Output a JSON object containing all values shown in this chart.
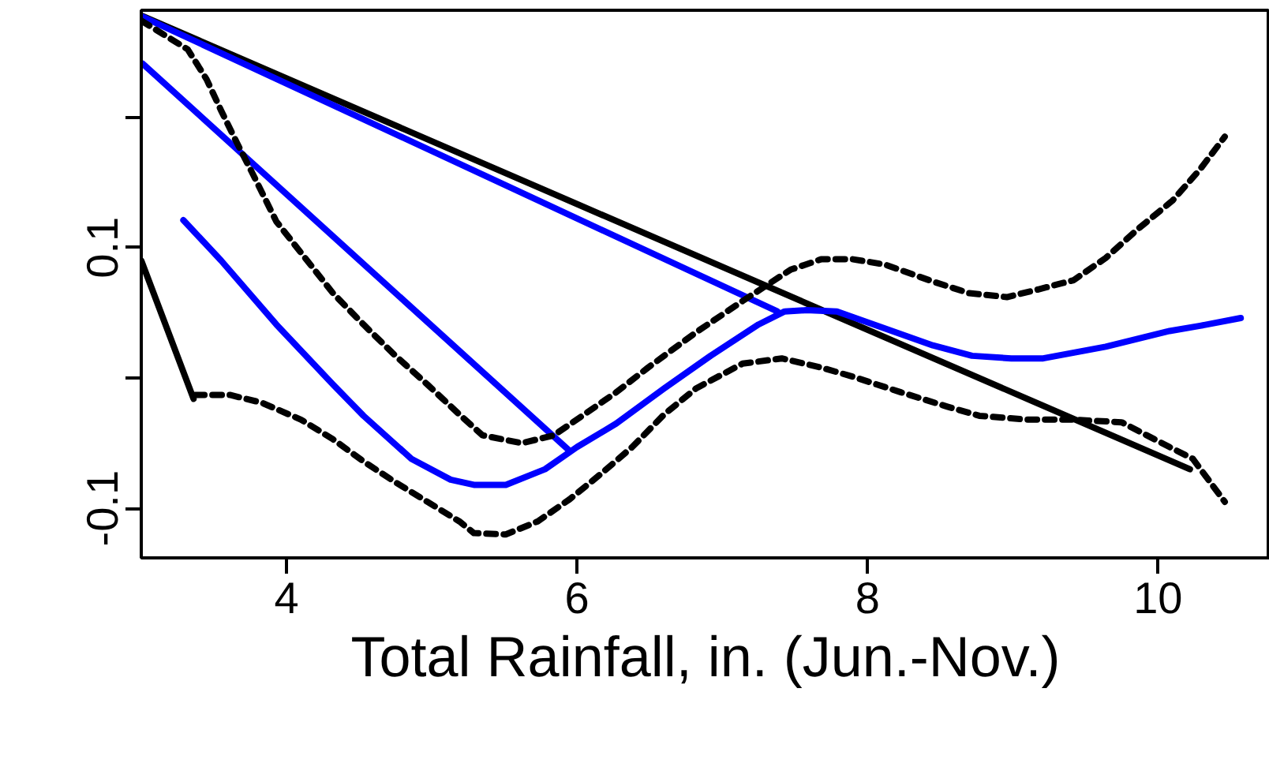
{
  "chart_data": {
    "type": "line",
    "xlabel": "Total Rainfall, in. (Jun.-Nov.)",
    "xlim": [
      3.0,
      10.77
    ],
    "ylim": [
      -0.138,
      0.282
    ],
    "xticks": [
      4,
      6,
      8,
      10
    ],
    "yticks": [
      {
        "value": -0.1,
        "label": "-0.1"
      },
      {
        "value": 0,
        "label": null
      },
      {
        "value": 0.1,
        "label": "0.1"
      },
      {
        "value": 0.2,
        "label": null
      }
    ],
    "series": [
      {
        "color": "#000000",
        "line_style": "solid",
        "x": [
          3.0,
          10.22
        ],
        "values": [
          0.278,
          -0.07
        ]
      },
      {
        "color": "#000000",
        "line_style": "solid",
        "x": [
          3.0,
          3.36
        ],
        "values": [
          0.09,
          -0.016
        ]
      },
      {
        "color": "#0000ff",
        "line_style": "solid",
        "x": [
          3.01,
          7.38
        ],
        "values": [
          0.277,
          0.051
        ]
      },
      {
        "color": "#0000ff",
        "line_style": "solid",
        "x": [
          3.01,
          5.95
        ],
        "values": [
          0.241,
          -0.056
        ]
      },
      {
        "color": "#0000ff",
        "line_style": "solid",
        "x": [
          3.29,
          3.55,
          3.93,
          4.32,
          4.53,
          4.86,
          5.13,
          5.29,
          5.51,
          5.78,
          6.0,
          6.27,
          6.6,
          6.92,
          7.25,
          7.43,
          7.58,
          7.79,
          8.12,
          8.45,
          8.72,
          8.99,
          9.21,
          9.64,
          10.08,
          10.29,
          10.57
        ],
        "values": [
          0.121,
          0.09,
          0.041,
          -0.005,
          -0.029,
          -0.062,
          -0.078,
          -0.082,
          -0.082,
          -0.07,
          -0.053,
          -0.035,
          -0.008,
          0.017,
          0.041,
          0.051,
          0.052,
          0.051,
          0.038,
          0.025,
          0.017,
          0.015,
          0.015,
          0.024,
          0.036,
          0.04,
          0.046
        ]
      },
      {
        "color": "#000000",
        "line_style": "dashed",
        "x": [
          3.0,
          3.32,
          3.45,
          3.55,
          3.66,
          3.77,
          3.93,
          4.1,
          4.32,
          4.53,
          4.75,
          4.97,
          5.19,
          5.35,
          5.62,
          5.84,
          6.05,
          6.27,
          6.49,
          6.82,
          7.14,
          7.47,
          7.68,
          7.9,
          8.12,
          8.45,
          8.7,
          8.96,
          9.18,
          9.42,
          9.64,
          9.86,
          10.1,
          10.29,
          10.46
        ],
        "values": [
          0.274,
          0.252,
          0.229,
          0.205,
          0.18,
          0.156,
          0.12,
          0.096,
          0.065,
          0.041,
          0.017,
          -0.005,
          -0.028,
          -0.044,
          -0.05,
          -0.044,
          -0.028,
          -0.011,
          0.008,
          0.035,
          0.059,
          0.083,
          0.091,
          0.091,
          0.087,
          0.074,
          0.065,
          0.062,
          0.068,
          0.075,
          0.092,
          0.114,
          0.136,
          0.16,
          0.185
        ]
      },
      {
        "color": "#000000",
        "line_style": "dashed",
        "x": [
          3.37,
          3.61,
          3.83,
          4.1,
          4.32,
          4.53,
          4.75,
          4.97,
          5.19,
          5.29,
          5.51,
          5.73,
          5.95,
          6.16,
          6.38,
          6.6,
          6.82,
          7.14,
          7.41,
          7.68,
          7.9,
          8.23,
          8.55,
          8.77,
          9.1,
          9.42,
          9.75,
          10.08,
          10.24,
          10.46
        ],
        "values": [
          -0.013,
          -0.013,
          -0.019,
          -0.032,
          -0.047,
          -0.064,
          -0.08,
          -0.095,
          -0.11,
          -0.119,
          -0.12,
          -0.11,
          -0.093,
          -0.074,
          -0.053,
          -0.028,
          -0.008,
          0.011,
          0.015,
          0.008,
          0.001,
          -0.011,
          -0.022,
          -0.029,
          -0.032,
          -0.032,
          -0.034,
          -0.053,
          -0.062,
          -0.095
        ]
      }
    ]
  }
}
